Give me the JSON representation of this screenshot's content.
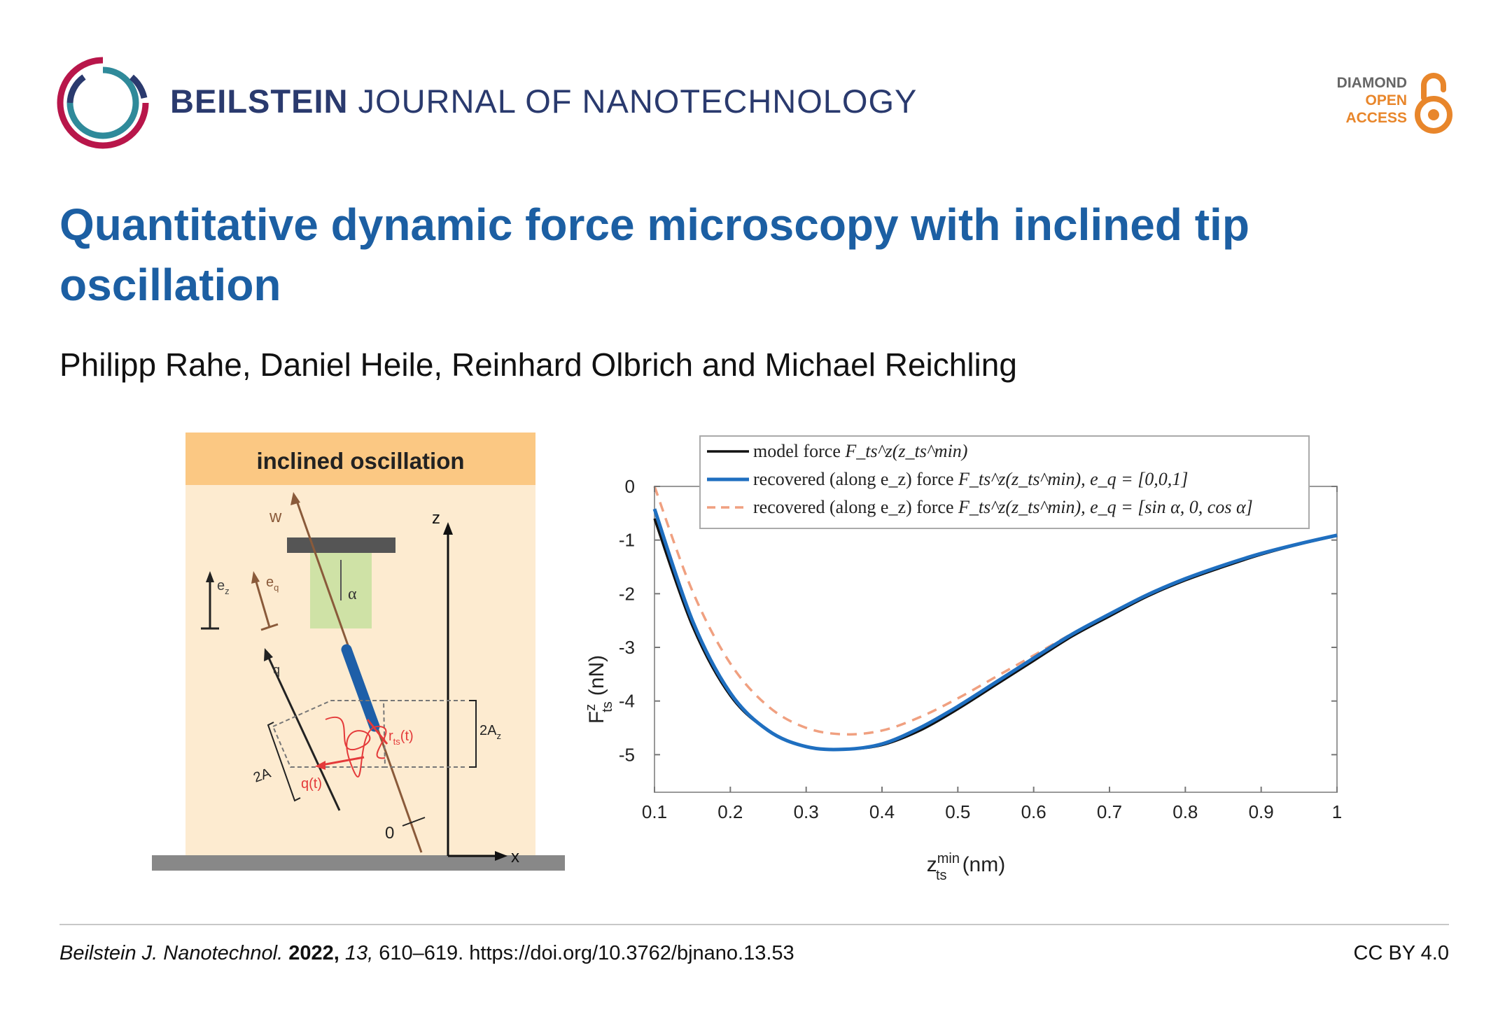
{
  "header": {
    "journal_bold": "BEILSTEIN",
    "journal_rest": "JOURNAL OF NANOTECHNOLOGY",
    "oa_line1": "DIAMOND",
    "oa_line2": "OPEN",
    "oa_line3": "ACCESS",
    "colors": {
      "navy": "#2a3a6e",
      "crimson": "#b8164a",
      "teal": "#2f8a9a",
      "orange": "#e8862b"
    }
  },
  "article": {
    "title": "Quantitative dynamic force microscopy with inclined tip oscillation",
    "authors": "Philipp Rahe, Daniel Heile, Reinhard Olbrich and Michael Reichling"
  },
  "schematic": {
    "heading": "inclined oscillation",
    "label_w": "w",
    "label_z": "z",
    "label_x": "x",
    "label_alpha": "α",
    "label_ez": "e",
    "label_ez_sub": "z",
    "label_eq": "e",
    "label_eq_sub": "q",
    "label_q": "q",
    "label_2Az": "2A",
    "label_2Az_sub": "z",
    "label_2A": "2A",
    "label_qt": "q(t)",
    "label_rts": "r",
    "label_rts_sub": "ts",
    "label_rts_arg": "(t)",
    "label_zero": "0"
  },
  "chart_data": {
    "type": "line",
    "xlabel": "z",
    "xlabel_sup": "min",
    "xlabel_sub": "ts",
    "xlabel_unit": "(nm)",
    "ylabel": "F",
    "ylabel_sup": "z",
    "ylabel_sub": "ts",
    "ylabel_unit": "(nN)",
    "xlim": [
      0.1,
      1.0
    ],
    "ylim": [
      -5.7,
      0
    ],
    "x_ticks": [
      "0.1",
      "0.2",
      "0.3",
      "0.4",
      "0.5",
      "0.6",
      "0.7",
      "0.8",
      "0.9",
      "1"
    ],
    "y_ticks": [
      "0",
      "-1",
      "-2",
      "-3",
      "-4",
      "-5"
    ],
    "legend_position": "top-right",
    "x": [
      0.1,
      0.15,
      0.2,
      0.25,
      0.3,
      0.35,
      0.4,
      0.45,
      0.5,
      0.55,
      0.6,
      0.65,
      0.7,
      0.75,
      0.8,
      0.85,
      0.9,
      0.95,
      1.0
    ],
    "series": [
      {
        "name": "model force",
        "legend_math": "F_ts^z(z_ts^min)",
        "color": "#111111",
        "dash": false,
        "values": [
          -0.6,
          -2.6,
          -3.9,
          -4.55,
          -4.85,
          -4.9,
          -4.82,
          -4.55,
          -4.15,
          -3.7,
          -3.25,
          -2.8,
          -2.42,
          -2.05,
          -1.75,
          -1.5,
          -1.27,
          -1.08,
          -0.92
        ]
      },
      {
        "name": "recovered (along e_z) force",
        "legend_math": "F_ts^z(z_ts^min), e_q = [0,0,1]",
        "color": "#1f6fc0",
        "dash": false,
        "values": [
          -0.42,
          -2.5,
          -3.85,
          -4.55,
          -4.85,
          -4.9,
          -4.8,
          -4.5,
          -4.1,
          -3.65,
          -3.2,
          -2.76,
          -2.38,
          -2.02,
          -1.72,
          -1.47,
          -1.25,
          -1.07,
          -0.91
        ]
      },
      {
        "name": "recovered (along e_z) force",
        "legend_math": "F_ts^z(z_ts^min), e_q = [sin α, 0, cos α]",
        "color": "#f0a080",
        "dash": true,
        "values": [
          0.0,
          -1.95,
          -3.3,
          -4.1,
          -4.5,
          -4.62,
          -4.55,
          -4.3,
          -3.95,
          -3.55,
          -3.15,
          -2.75,
          -2.38,
          -2.03,
          -1.73,
          -1.48,
          -1.26,
          -1.07,
          -0.91
        ]
      }
    ]
  },
  "footer": {
    "journal_abbrev": "Beilstein J. Nanotechnol.",
    "year": "2022,",
    "volume": "13,",
    "pages_doi": "610–619. https://doi.org/10.3762/bjnano.13.53",
    "license": "CC BY 4.0"
  }
}
